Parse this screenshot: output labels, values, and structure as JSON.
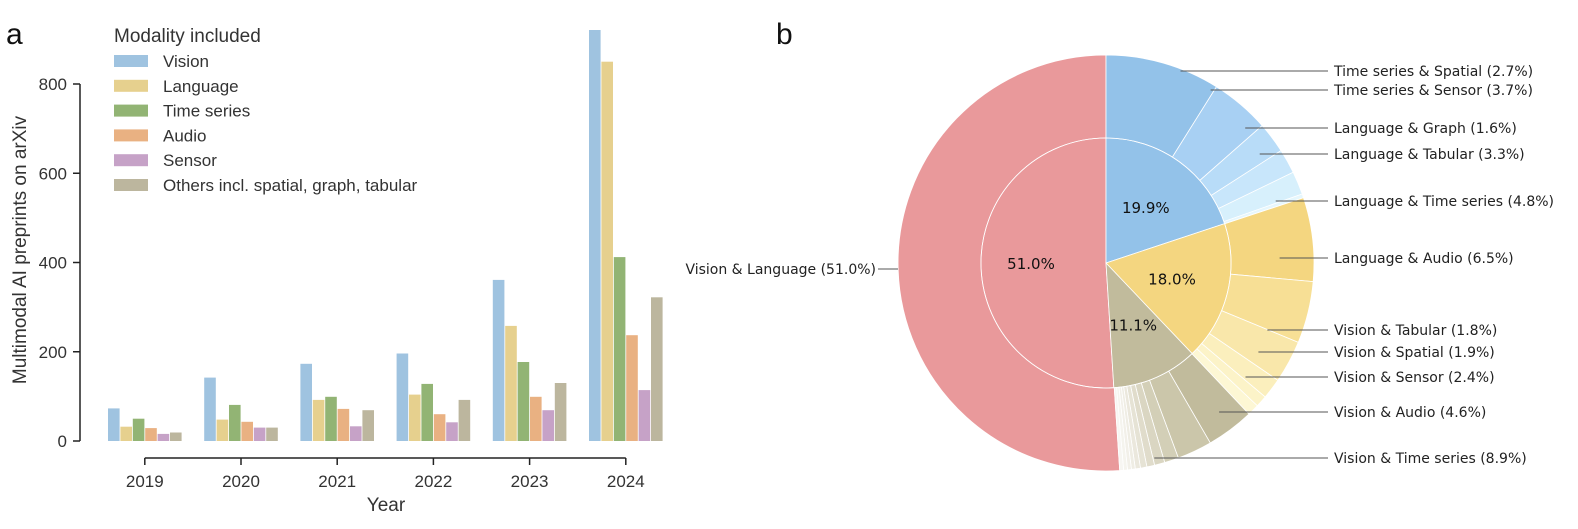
{
  "panel_a_letter": "a",
  "panel_b_letter": "b",
  "chart_data": [
    {
      "type": "bar",
      "xlabel": "Year",
      "ylabel": "Multimodal AI preprints on arXiv",
      "ylim": [
        0,
        950
      ],
      "yticks": [
        0,
        200,
        400,
        600,
        800
      ],
      "grid": false,
      "legend_title": "Modality included",
      "legend_placement": "top-left",
      "categories": [
        "2019",
        "2020",
        "2021",
        "2022",
        "2023",
        "2024"
      ],
      "series": [
        {
          "name": "Vision",
          "color": "#9fc3e0",
          "values": [
            73,
            142,
            173,
            196,
            361,
            921
          ]
        },
        {
          "name": "Language",
          "color": "#e6d08e",
          "values": [
            32,
            48,
            92,
            104,
            258,
            850
          ]
        },
        {
          "name": "Time series",
          "color": "#92b474",
          "values": [
            50,
            81,
            99,
            128,
            177,
            412
          ]
        },
        {
          "name": "Audio",
          "color": "#e9b182",
          "values": [
            29,
            43,
            72,
            60,
            99,
            237
          ]
        },
        {
          "name": "Sensor",
          "color": "#c6a2c7",
          "values": [
            16,
            30,
            33,
            42,
            69,
            114
          ]
        },
        {
          "name": "Others incl. spatial, graph, tabular",
          "color": "#bcb69e",
          "values": [
            19,
            30,
            69,
            92,
            130,
            322
          ]
        }
      ]
    },
    {
      "type": "pie",
      "style": "nested-donut",
      "inner": [
        {
          "label": "51.0%",
          "value": 51.0,
          "color": "#e9999b"
        },
        {
          "label": "19.9%",
          "value": 19.9,
          "color": "#93c2e9"
        },
        {
          "label": "18.0%",
          "value": 18.0,
          "color": "#f4d680"
        },
        {
          "label": "11.1%",
          "value": 11.1,
          "color": "#c1bb9c"
        }
      ],
      "outer": [
        {
          "label": "Vision & Language (51.0%)",
          "value": 51.0,
          "color": "#e9999b",
          "labeled": true
        },
        {
          "label": "Vision & Time series (8.9%)",
          "value": 8.9,
          "color": "#93c2e9",
          "labeled": true
        },
        {
          "label": "Vision & Audio (4.6%)",
          "value": 4.6,
          "color": "#a8d0f3",
          "labeled": true
        },
        {
          "label": "Vision & Sensor (2.4%)",
          "value": 2.4,
          "color": "#b8dcf8",
          "labeled": true
        },
        {
          "label": "Vision & Spatial (1.9%)",
          "value": 1.9,
          "color": "#c8e6fb",
          "labeled": true
        },
        {
          "label": "Vision & Tabular (1.8%)",
          "value": 1.8,
          "color": "#d7f0fc",
          "labeled": true
        },
        {
          "label": "",
          "value": 0.3,
          "color": "#e6f7fd",
          "labeled": false
        },
        {
          "label": "Language & Audio (6.5%)",
          "value": 6.5,
          "color": "#f4d680",
          "labeled": true
        },
        {
          "label": "Language & Time series (4.8%)",
          "value": 4.8,
          "color": "#f7df95",
          "labeled": true
        },
        {
          "label": "Language & Tabular (3.3%)",
          "value": 3.3,
          "color": "#f9e7aa",
          "labeled": true
        },
        {
          "label": "Language & Graph (1.6%)",
          "value": 1.6,
          "color": "#fbefbd",
          "labeled": true
        },
        {
          "label": "",
          "value": 0.9,
          "color": "#fcf3c8",
          "labeled": false
        },
        {
          "label": "",
          "value": 0.9,
          "color": "#fdf7d4",
          "labeled": false
        },
        {
          "label": "Time series & Sensor (3.7%)",
          "value": 3.7,
          "color": "#c1bb9c",
          "labeled": true
        },
        {
          "label": "Time series & Spatial (2.7%)",
          "value": 2.7,
          "color": "#cbc6aa",
          "labeled": true
        },
        {
          "label": "",
          "value": 1.1,
          "color": "#d3cfb7",
          "labeled": false
        },
        {
          "label": "",
          "value": 0.8,
          "color": "#dad6c2",
          "labeled": false
        },
        {
          "label": "",
          "value": 0.6,
          "color": "#e0dccb",
          "labeled": false
        },
        {
          "label": "",
          "value": 0.5,
          "color": "#e6e3d5",
          "labeled": false
        },
        {
          "label": "",
          "value": 0.4,
          "color": "#ebe8dd",
          "labeled": false
        },
        {
          "label": "",
          "value": 0.3,
          "color": "#efede4",
          "labeled": false
        },
        {
          "label": "",
          "value": 0.3,
          "color": "#f2f0e9",
          "labeled": false
        },
        {
          "label": "",
          "value": 0.3,
          "color": "#f5f4ee",
          "labeled": false
        },
        {
          "label": "",
          "value": 0.3,
          "color": "#f7f6f2",
          "labeled": false
        }
      ]
    }
  ]
}
